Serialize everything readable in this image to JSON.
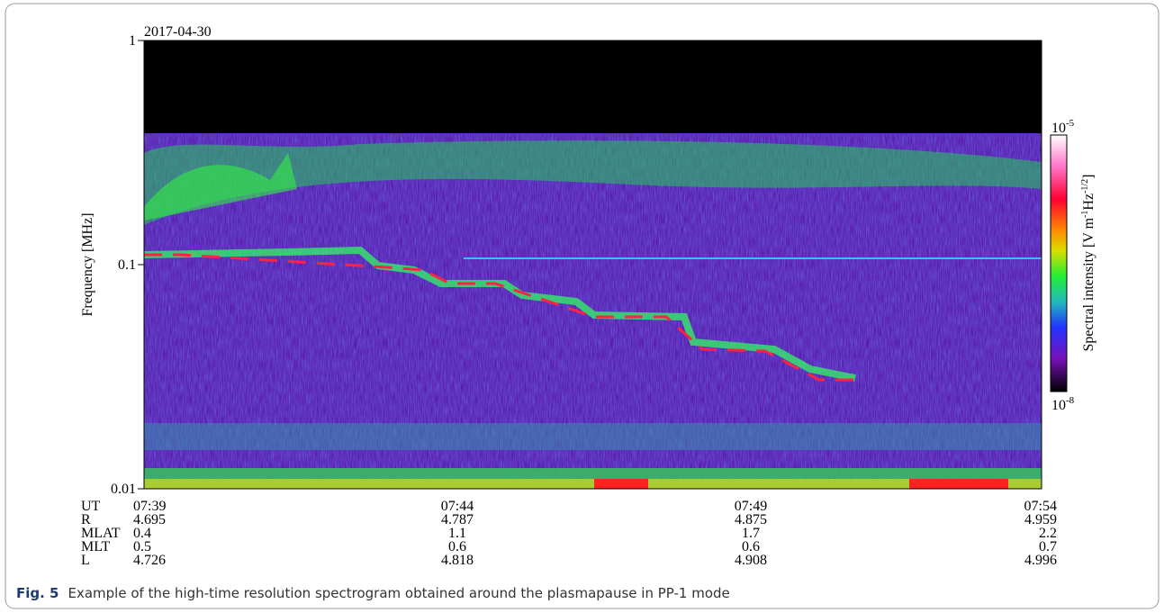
{
  "figure": {
    "date": "2017-04-30",
    "y_label": "Frequency [MHz]",
    "y_axis": {
      "scale": "log",
      "ylim": [
        0.01,
        1
      ],
      "yticks": [
        0.01,
        0.1,
        1
      ]
    },
    "colorbar": {
      "label": {
        "text": "Spectral intensity [V m",
        "exp1": "-1",
        "mid": "Hz",
        "exp2": "-1/2",
        "end": "]"
      },
      "top": {
        "base": "10",
        "exp": "-5"
      },
      "bottom": {
        "base": "10",
        "exp": "-8"
      }
    },
    "ephemeris": [
      {
        "label": "UT",
        "values": [
          "07:39",
          "07:44",
          "07:49",
          "07:54"
        ]
      },
      {
        "label": "R",
        "values": [
          "4.695",
          "4.787",
          "4.875",
          "4.959"
        ]
      },
      {
        "label": "MLAT",
        "values": [
          "0.4",
          "1.1",
          "1.7",
          "2.2"
        ]
      },
      {
        "label": "MLT",
        "values": [
          "0.5",
          "0.6",
          "0.6",
          "0.7"
        ]
      },
      {
        "label": "L",
        "values": [
          "4.726",
          "4.818",
          "4.908",
          "4.996"
        ]
      }
    ],
    "caption": {
      "label": "Fig. 5",
      "text": "Example of the high-time resolution spectrogram obtained around the plasmapause in PP-1 mode"
    }
  }
}
